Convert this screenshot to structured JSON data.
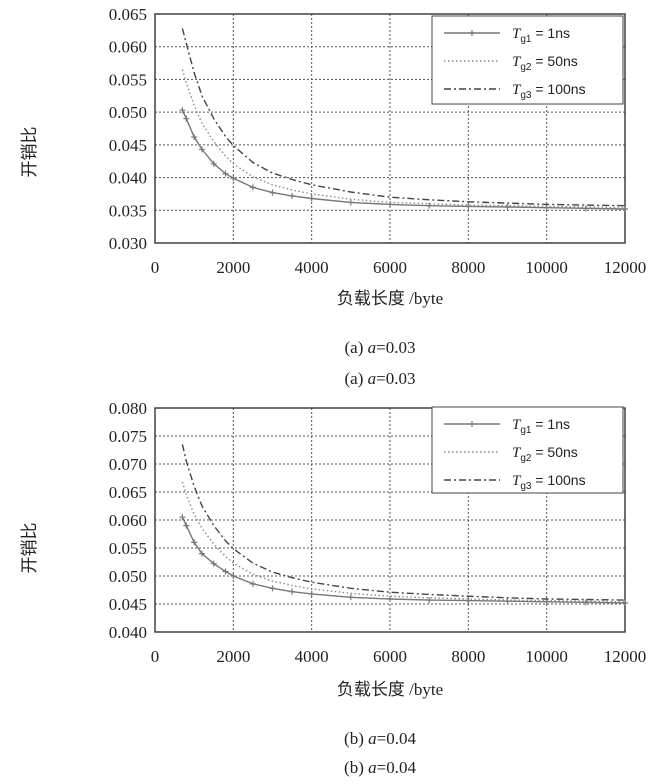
{
  "chart_data": [
    {
      "type": "line",
      "ylabel": "开销比",
      "xlabel": "负载长度 /byte",
      "captions": [
        "(a) a=0.03",
        "(a) a=0.03"
      ],
      "xticks": [
        "0",
        "2000",
        "4000",
        "6000",
        "8000",
        "10000",
        "12000"
      ],
      "yticks": [
        "0.030",
        "0.035",
        "0.040",
        "0.045",
        "0.050",
        "0.055",
        "0.060",
        "0.065"
      ],
      "xlim": [
        0,
        12000
      ],
      "ylim": [
        0.03,
        0.065
      ],
      "grid": true,
      "legend_position": "top-right",
      "x": [
        700,
        800,
        1000,
        1200,
        1500,
        1800,
        2000,
        2500,
        3000,
        3500,
        4000,
        5000,
        6000,
        7000,
        8000,
        9000,
        10000,
        11000,
        12000
      ],
      "series": [
        {
          "name": "Tg1 = 1ns",
          "color": "#777777",
          "dash": "solid",
          "marker": "plus",
          "values": [
            0.0503,
            0.049,
            0.0462,
            0.0443,
            0.0421,
            0.0406,
            0.0399,
            0.0385,
            0.0377,
            0.0372,
            0.0368,
            0.0362,
            0.0359,
            0.0357,
            0.0356,
            0.0355,
            0.0354,
            0.0353,
            0.0352
          ]
        },
        {
          "name": "Tg2 = 50ns",
          "color": "#8a8a8a",
          "dash": "dotted",
          "marker": "none",
          "values": [
            0.0565,
            0.0545,
            0.051,
            0.0483,
            0.0455,
            0.0433,
            0.0421,
            0.0401,
            0.0389,
            0.0381,
            0.0375,
            0.0367,
            0.0362,
            0.036,
            0.0358,
            0.0357,
            0.0356,
            0.0355,
            0.0354
          ]
        },
        {
          "name": "Tg3 = 100ns",
          "color": "#444444",
          "dash": "dashdot",
          "marker": "none",
          "values": [
            0.0628,
            0.0605,
            0.056,
            0.0525,
            0.049,
            0.0463,
            0.0449,
            0.0423,
            0.0407,
            0.0397,
            0.0389,
            0.0378,
            0.037,
            0.0366,
            0.0363,
            0.0361,
            0.0359,
            0.0358,
            0.0357
          ]
        }
      ],
      "legend": [
        {
          "base": "T",
          "sub": "g1",
          "rest": " = 1ns"
        },
        {
          "base": "T",
          "sub": "g2",
          "rest": " = 50ns"
        },
        {
          "base": "T",
          "sub": "g3",
          "rest": " = 100ns"
        }
      ]
    },
    {
      "type": "line",
      "ylabel": "开销比",
      "xlabel": "负载长度 /byte",
      "captions": [
        "(b) a=0.04",
        "(b) a=0.04"
      ],
      "xticks": [
        "0",
        "2000",
        "4000",
        "6000",
        "8000",
        "10000",
        "12000"
      ],
      "yticks": [
        "0.040",
        "0.045",
        "0.050",
        "0.055",
        "0.060",
        "0.065",
        "0.070",
        "0.075",
        "0.080"
      ],
      "xlim": [
        0,
        12000
      ],
      "ylim": [
        0.04,
        0.08
      ],
      "grid": true,
      "legend_position": "top-right",
      "x": [
        700,
        800,
        1000,
        1200,
        1500,
        1800,
        2000,
        2500,
        3000,
        3500,
        4000,
        5000,
        6000,
        7000,
        8000,
        9000,
        10000,
        11000,
        12000
      ],
      "series": [
        {
          "name": "Tg1 = 1ns",
          "color": "#777777",
          "dash": "solid",
          "marker": "plus",
          "values": [
            0.0605,
            0.059,
            0.056,
            0.054,
            0.0522,
            0.0508,
            0.05,
            0.0486,
            0.0478,
            0.0472,
            0.0468,
            0.0462,
            0.0459,
            0.0457,
            0.0456,
            0.0455,
            0.0454,
            0.0453,
            0.0452
          ]
        },
        {
          "name": "Tg2 = 50ns",
          "color": "#8a8a8a",
          "dash": "dotted",
          "marker": "none",
          "values": [
            0.0668,
            0.0645,
            0.061,
            0.0585,
            0.0557,
            0.0535,
            0.0523,
            0.0503,
            0.0491,
            0.0483,
            0.0477,
            0.0469,
            0.0464,
            0.0461,
            0.0459,
            0.0457,
            0.0456,
            0.0455,
            0.0454
          ]
        },
        {
          "name": "Tg3 = 100ns",
          "color": "#444444",
          "dash": "dashdot",
          "marker": "none",
          "values": [
            0.0735,
            0.0705,
            0.066,
            0.0625,
            0.059,
            0.0563,
            0.0549,
            0.0523,
            0.0507,
            0.0497,
            0.0489,
            0.0478,
            0.0471,
            0.0467,
            0.0464,
            0.0461,
            0.0459,
            0.0458,
            0.0457
          ]
        }
      ],
      "legend": [
        {
          "base": "T",
          "sub": "g1",
          "rest": " = 1ns"
        },
        {
          "base": "T",
          "sub": "g2",
          "rest": " = 50ns"
        },
        {
          "base": "T",
          "sub": "g3",
          "rest": " = 100ns"
        }
      ]
    }
  ]
}
